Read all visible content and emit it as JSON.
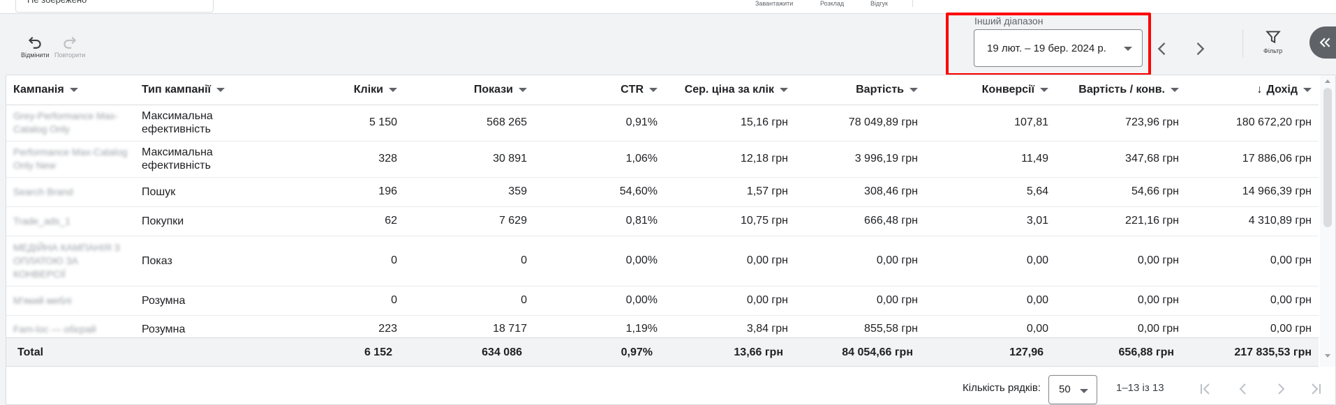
{
  "topbar": {
    "saved_view": "Не збережено",
    "labels": [
      "Завантажити",
      "Розклад",
      "Відгук"
    ]
  },
  "toolbar": {
    "undo_label": "Відмінити",
    "redo_label": "Повторити",
    "range_label": "Інший діапазон",
    "date_range": "19 лют. – 19 бер. 2024 р.",
    "filter_label": "Фільтр"
  },
  "table": {
    "columns": [
      "Кампанія",
      "Тип кампанії",
      "Кліки",
      "Покази",
      "CTR",
      "Сер. ціна за клік",
      "Вартість",
      "Конверсії",
      "Вартість / конв.",
      "Дохід"
    ],
    "rows": [
      {
        "campaign": "Grey-Performance Max-Catalog Only",
        "type": "Максимальна ефективність",
        "clicks": "5 150",
        "impr": "568 265",
        "ctr": "0,91%",
        "cpc": "15,16 грн",
        "cost": "78 049,89 грн",
        "conv": "107,81",
        "cpa": "723,96 грн",
        "rev": "180 672,20 грн"
      },
      {
        "campaign": "Performance Max-Catalog Only New",
        "type": "Максимальна ефективність",
        "clicks": "328",
        "impr": "30 891",
        "ctr": "1,06%",
        "cpc": "12,18 грн",
        "cost": "3 996,19 грн",
        "conv": "11,49",
        "cpa": "347,68 грн",
        "rev": "17 886,06 грн"
      },
      {
        "campaign": "Search Brand",
        "type": "Пошук",
        "clicks": "196",
        "impr": "359",
        "ctr": "54,60%",
        "cpc": "1,57 грн",
        "cost": "308,46 грн",
        "conv": "5,64",
        "cpa": "54,66 грн",
        "rev": "14 966,39 грн"
      },
      {
        "campaign": "Trade_ads_1",
        "type": "Покупки",
        "clicks": "62",
        "impr": "7 629",
        "ctr": "0,81%",
        "cpc": "10,75 грн",
        "cost": "666,48 грн",
        "conv": "3,01",
        "cpa": "221,16 грн",
        "rev": "4 310,89 грн"
      },
      {
        "campaign": "МЕДІЙНА КАМПАНІЯ З ОПЛАТОЮ ЗА КОНВЕРСІЇ",
        "type": "Показ",
        "clicks": "0",
        "impr": "0",
        "ctr": "0,00%",
        "cpc": "0,00 грн",
        "cost": "0,00 грн",
        "conv": "0,00",
        "cpa": "0,00 грн",
        "rev": "0,00 грн"
      },
      {
        "campaign": "М'який меблі",
        "type": "Розумна",
        "clicks": "0",
        "impr": "0",
        "ctr": "0,00%",
        "cpc": "0,00 грн",
        "cost": "0,00 грн",
        "conv": "0,00",
        "cpa": "0,00 грн",
        "rev": "0,00 грн"
      },
      {
        "campaign": "Fam-loc — обєрай",
        "type": "Розумна",
        "clicks": "223",
        "impr": "18 717",
        "ctr": "1,19%",
        "cpc": "3,84 грн",
        "cost": "855,58 грн",
        "conv": "0,00",
        "cpa": "0,00 грн",
        "rev": "0,00 грн"
      }
    ],
    "total": {
      "label": "Total",
      "clicks": "6 152",
      "impr": "634 086",
      "ctr": "0,97%",
      "cpc": "13,66 грн",
      "cost": "84 054,66 грн",
      "conv": "127,96",
      "cpa": "656,88 грн",
      "rev": "217 835,53 грн"
    }
  },
  "footer": {
    "rows_label": "Кількість рядків:",
    "rows_value": "50",
    "range_text": "1–13 із 13"
  },
  "colors": {
    "highlight": "#ff0000",
    "border": "#dadce0",
    "collapse": "#5f6368"
  }
}
